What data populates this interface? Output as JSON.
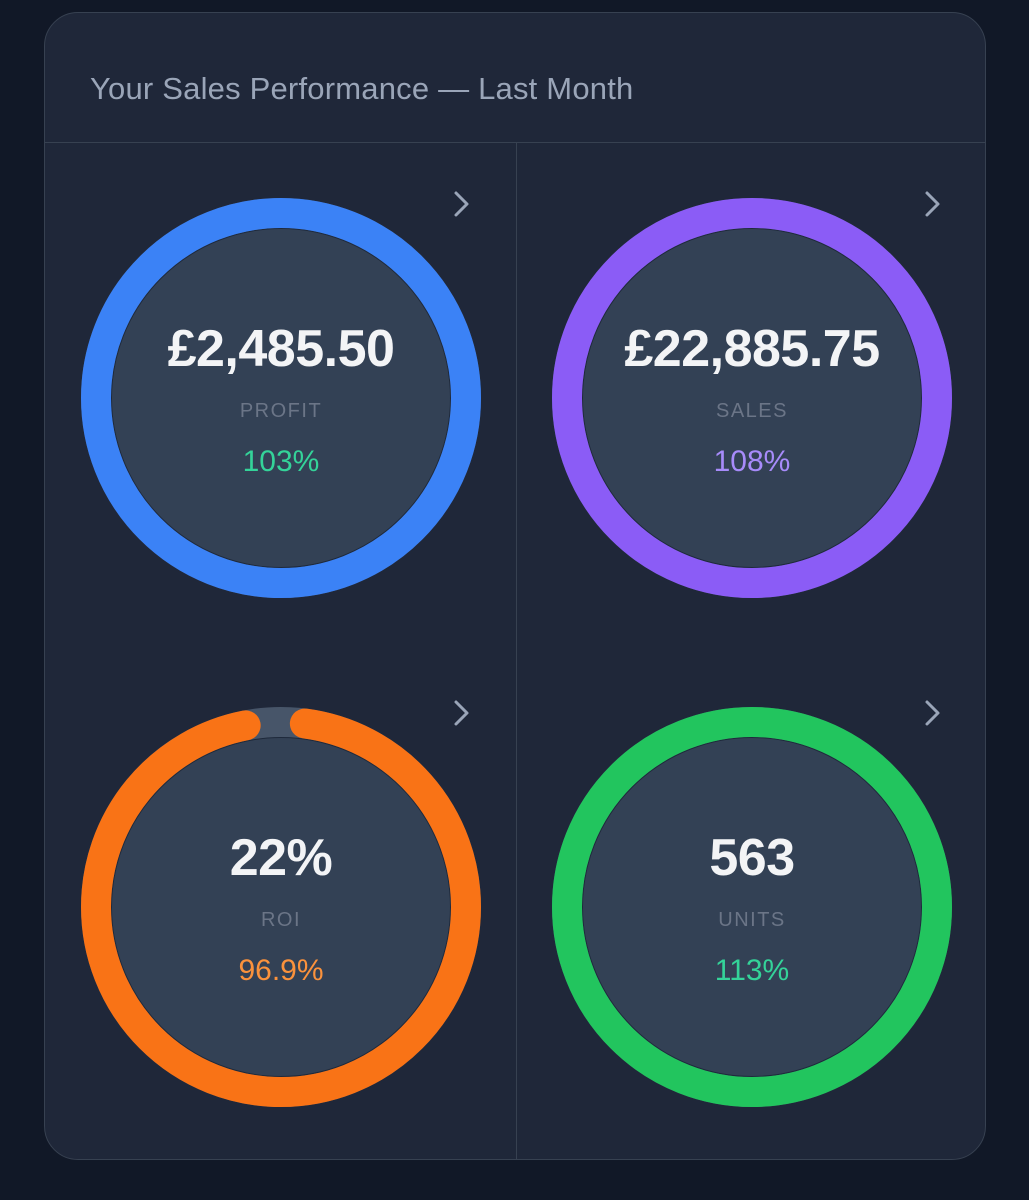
{
  "card": {
    "title": "Your Sales Performance — Last Month"
  },
  "metrics": [
    {
      "value": "£2,485.50",
      "label": "PROFIT",
      "change": "103%",
      "ring_color": "#3b82f6",
      "change_color": "#34d399",
      "progress": 1.0,
      "icon": "chevron-right-icon"
    },
    {
      "value": "£22,885.75",
      "label": "SALES",
      "change": "108%",
      "ring_color": "#8b5cf6",
      "change_color": "#a78bfa",
      "progress": 1.0,
      "icon": "chevron-right-icon"
    },
    {
      "value": "22%",
      "label": "ROI",
      "change": "96.9%",
      "ring_color": "#f97316",
      "change_color": "#fb923c",
      "progress": 0.969,
      "icon": "chevron-right-icon"
    },
    {
      "value": "563",
      "label": "UNITS",
      "change": "113%",
      "ring_color": "#22c55e",
      "change_color": "#34d399",
      "progress": 1.0,
      "icon": "chevron-right-icon"
    }
  ],
  "colors": {
    "background": "#111827",
    "card": "#1f2739",
    "ring_inner": "#334155",
    "ring_track": "#475569"
  }
}
